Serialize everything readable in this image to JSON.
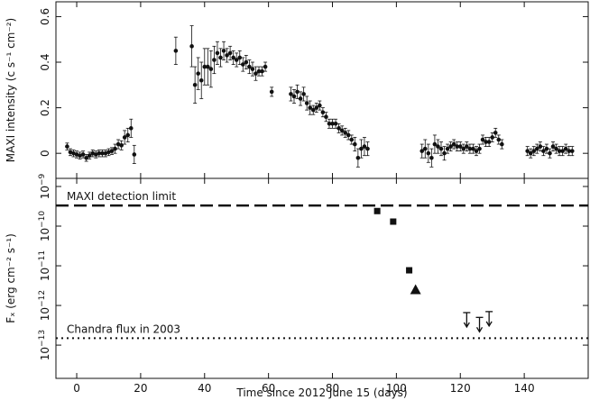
{
  "chart_data": [
    {
      "type": "scatter",
      "ylabel": "MAXI intensity (c s⁻¹ cm⁻²)",
      "xlim": [
        -6.5,
        160
      ],
      "xticks": [
        0,
        20,
        40,
        60,
        80,
        100,
        120,
        140
      ],
      "ylim": [
        -0.11,
        0.665
      ],
      "yticks": [
        0,
        0.2,
        0.4,
        0.6
      ],
      "color": "#111111",
      "x": [
        -3,
        -2,
        -1,
        0,
        1,
        2,
        3,
        4,
        5,
        6,
        7,
        8,
        9,
        10,
        11,
        12,
        13,
        14,
        15,
        16,
        17,
        18,
        31,
        36,
        37,
        38,
        39,
        40,
        41,
        42,
        43,
        44,
        45,
        46,
        47,
        48,
        49,
        50,
        51,
        52,
        53,
        54,
        55,
        56,
        57,
        58,
        59,
        61,
        67,
        68,
        69,
        70,
        71,
        72,
        73,
        74,
        75,
        76,
        77,
        78,
        79,
        80,
        81,
        82,
        83,
        84,
        85,
        86,
        87,
        88,
        89,
        90,
        91,
        108,
        109,
        110,
        111,
        112,
        113,
        114,
        115,
        116,
        117,
        118,
        119,
        120,
        121,
        122,
        123,
        124,
        125,
        126,
        127,
        128,
        129,
        130,
        131,
        132,
        133,
        141,
        142,
        143,
        144,
        145,
        146,
        147,
        148,
        149,
        150,
        151,
        152,
        153,
        154,
        155
      ],
      "values": [
        0.03,
        0.005,
        0.0,
        -0.005,
        -0.01,
        -0.005,
        -0.02,
        -0.01,
        0.0,
        -0.005,
        0.0,
        0.0,
        0.0,
        0.005,
        0.01,
        0.02,
        0.04,
        0.035,
        0.07,
        0.08,
        0.11,
        -0.005,
        0.45,
        0.47,
        0.3,
        0.35,
        0.32,
        0.38,
        0.38,
        0.37,
        0.41,
        0.44,
        0.42,
        0.45,
        0.43,
        0.44,
        0.42,
        0.41,
        0.42,
        0.39,
        0.4,
        0.38,
        0.37,
        0.35,
        0.36,
        0.36,
        0.38,
        0.27,
        0.26,
        0.25,
        0.27,
        0.24,
        0.26,
        0.22,
        0.2,
        0.19,
        0.2,
        0.21,
        0.18,
        0.16,
        0.13,
        0.13,
        0.13,
        0.11,
        0.1,
        0.09,
        0.08,
        0.06,
        0.04,
        -0.02,
        0.02,
        0.03,
        0.02,
        0.01,
        0.02,
        0.0,
        -0.02,
        0.04,
        0.03,
        0.02,
        0.0,
        0.02,
        0.03,
        0.04,
        0.03,
        0.03,
        0.02,
        0.03,
        0.02,
        0.02,
        0.01,
        0.02,
        0.06,
        0.05,
        0.05,
        0.07,
        0.09,
        0.06,
        0.04,
        0.01,
        0.0,
        0.01,
        0.02,
        0.03,
        0.01,
        0.02,
        0.0,
        0.03,
        0.02,
        0.01,
        0.01,
        0.02,
        0.01,
        0.01
      ],
      "errors": [
        0.015,
        0.015,
        0.015,
        0.015,
        0.015,
        0.015,
        0.015,
        0.015,
        0.015,
        0.015,
        0.015,
        0.015,
        0.015,
        0.015,
        0.015,
        0.02,
        0.02,
        0.02,
        0.03,
        0.03,
        0.04,
        0.04,
        0.06,
        0.09,
        0.08,
        0.07,
        0.08,
        0.08,
        0.08,
        0.08,
        0.06,
        0.05,
        0.04,
        0.04,
        0.03,
        0.03,
        0.03,
        0.03,
        0.03,
        0.03,
        0.03,
        0.03,
        0.03,
        0.03,
        0.02,
        0.02,
        0.02,
        0.02,
        0.03,
        0.03,
        0.03,
        0.03,
        0.03,
        0.03,
        0.03,
        0.02,
        0.02,
        0.02,
        0.02,
        0.02,
        0.02,
        0.02,
        0.02,
        0.02,
        0.02,
        0.02,
        0.02,
        0.02,
        0.03,
        0.04,
        0.04,
        0.04,
        0.03,
        0.03,
        0.04,
        0.04,
        0.04,
        0.04,
        0.03,
        0.03,
        0.03,
        0.02,
        0.02,
        0.02,
        0.02,
        0.02,
        0.02,
        0.02,
        0.02,
        0.02,
        0.02,
        0.02,
        0.02,
        0.02,
        0.02,
        0.02,
        0.02,
        0.02,
        0.02,
        0.02,
        0.02,
        0.02,
        0.02,
        0.02,
        0.02,
        0.02,
        0.02,
        0.02,
        0.02,
        0.02,
        0.02,
        0.02,
        0.02,
        0.02
      ]
    },
    {
      "type": "scatter",
      "xlabel": "Time since 2012 June 15 (days)",
      "ylabel": "Fₓ (erg cm⁻² s⁻¹)",
      "log_y": true,
      "xlim": [
        -6.5,
        160
      ],
      "xticks": [
        0,
        20,
        40,
        60,
        80,
        100,
        120,
        140
      ],
      "ylim": [
        1.45e-14,
        1.6e-09
      ],
      "yticks": [
        {
          "value": 1e-09,
          "label": "10",
          "exponent": "−9"
        },
        {
          "value": 1e-10,
          "label": "10",
          "exponent": "−10"
        },
        {
          "value": 1e-11,
          "label": "10",
          "exponent": "−11"
        },
        {
          "value": 1e-12,
          "label": "10",
          "exponent": "−12"
        },
        {
          "value": 1e-13,
          "label": "10",
          "exponent": "−13"
        }
      ],
      "series": [
        {
          "marker": "square",
          "color": "#111111",
          "x": [
            94,
            99,
            104
          ],
          "values": [
            2.4e-10,
            1.3e-10,
            7.7e-12
          ]
        },
        {
          "marker": "triangle",
          "color": "#111111",
          "x": [
            106
          ],
          "values": [
            2.5e-12
          ]
        },
        {
          "marker": "upper-limit",
          "color": "#111111",
          "x": [
            122,
            126,
            129
          ],
          "values": [
            6.6e-13,
            5e-13,
            7e-13
          ]
        }
      ],
      "hlines": [
        {
          "value": 3.3e-10,
          "label": "MAXI detection limit",
          "style": "dashed"
        },
        {
          "value": 1.5e-13,
          "label": "Chandra flux in 2003",
          "style": "dotted"
        }
      ]
    }
  ]
}
